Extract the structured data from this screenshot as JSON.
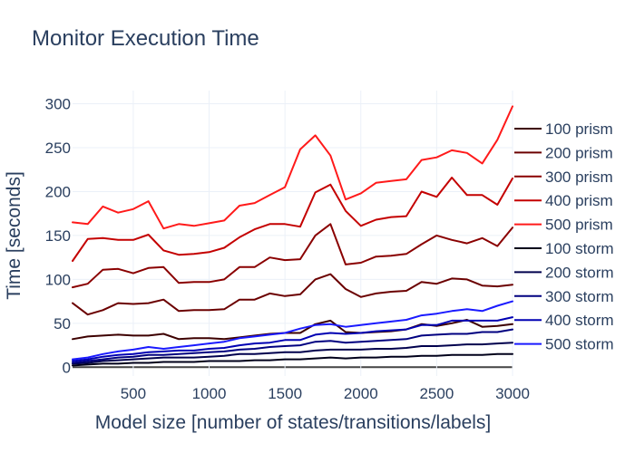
{
  "chart_data": {
    "type": "line",
    "title": "Monitor Execution Time",
    "xlabel": "Model size [number of states/transitions/labels]",
    "ylabel": "Time [seconds]",
    "xlim": [
      100,
      3000
    ],
    "ylim": [
      -10,
      315
    ],
    "xticks": [
      500,
      1000,
      1500,
      2000,
      2500,
      3000
    ],
    "yticks": [
      0,
      50,
      100,
      150,
      200,
      250,
      300
    ],
    "grid": true,
    "legend_position": "right",
    "x": [
      100,
      200,
      300,
      400,
      500,
      600,
      700,
      800,
      900,
      1000,
      1100,
      1200,
      1300,
      1400,
      1500,
      1600,
      1700,
      1800,
      1900,
      2000,
      2100,
      2200,
      2300,
      2400,
      2500,
      2600,
      2700,
      2800,
      2900,
      3000
    ],
    "series": [
      {
        "name": "100 prism",
        "color": "#3d0000",
        "values": [
          32,
          35,
          36,
          37,
          36,
          36,
          38,
          32,
          33,
          33,
          32,
          34,
          36,
          38,
          39,
          39,
          49,
          53,
          40,
          39,
          40,
          41,
          43,
          49,
          47,
          50,
          54,
          46,
          47,
          49
        ]
      },
      {
        "name": "200 prism",
        "color": "#6b0000",
        "values": [
          73,
          60,
          65,
          73,
          72,
          73,
          77,
          64,
          65,
          65,
          66,
          77,
          77,
          84,
          81,
          83,
          100,
          106,
          89,
          80,
          84,
          86,
          87,
          97,
          95,
          101,
          100,
          93,
          92,
          94
        ]
      },
      {
        "name": "300 prism",
        "color": "#8a0000",
        "values": [
          91,
          95,
          111,
          112,
          107,
          113,
          114,
          96,
          97,
          97,
          100,
          114,
          114,
          125,
          122,
          123,
          150,
          163,
          117,
          119,
          126,
          127,
          129,
          140,
          150,
          145,
          141,
          147,
          138,
          159
        ]
      },
      {
        "name": "400 prism",
        "color": "#c40000",
        "values": [
          121,
          146,
          147,
          145,
          145,
          151,
          133,
          128,
          129,
          131,
          136,
          148,
          157,
          163,
          163,
          160,
          199,
          208,
          178,
          161,
          168,
          171,
          172,
          200,
          194,
          216,
          196,
          196,
          185,
          215
        ]
      },
      {
        "name": "500 prism",
        "color": "#ff1a1a",
        "values": [
          165,
          163,
          183,
          176,
          180,
          189,
          158,
          163,
          161,
          164,
          167,
          184,
          187,
          196,
          205,
          248,
          264,
          241,
          191,
          198,
          210,
          212,
          214,
          236,
          239,
          247,
          244,
          232,
          259,
          297
        ]
      },
      {
        "name": "100 storm",
        "color": "#00001a",
        "values": [
          2,
          3,
          4,
          4,
          5,
          5,
          6,
          6,
          6,
          7,
          7,
          7,
          8,
          8,
          9,
          9,
          10,
          11,
          10,
          11,
          11,
          12,
          12,
          13,
          13,
          14,
          14,
          14,
          15,
          15
        ]
      },
      {
        "name": "200 storm",
        "color": "#00004d",
        "values": [
          4,
          5,
          7,
          8,
          9,
          10,
          11,
          11,
          11,
          12,
          13,
          15,
          15,
          16,
          17,
          17,
          19,
          20,
          20,
          20,
          21,
          21,
          22,
          24,
          24,
          25,
          26,
          26,
          27,
          28
        ]
      },
      {
        "name": "300 storm",
        "color": "#000080",
        "values": [
          5,
          7,
          9,
          11,
          12,
          14,
          14,
          15,
          16,
          17,
          18,
          20,
          21,
          23,
          24,
          25,
          29,
          30,
          28,
          29,
          30,
          31,
          32,
          36,
          37,
          38,
          38,
          40,
          40,
          43
        ]
      },
      {
        "name": "400 storm",
        "color": "#0000b3",
        "values": [
          7,
          9,
          12,
          14,
          15,
          17,
          18,
          19,
          19,
          21,
          22,
          25,
          27,
          28,
          31,
          31,
          37,
          39,
          38,
          39,
          41,
          42,
          43,
          48,
          48,
          53,
          53,
          53,
          53,
          57
        ]
      },
      {
        "name": "500 storm",
        "color": "#1a1aff",
        "values": [
          9,
          11,
          15,
          18,
          20,
          23,
          21,
          23,
          25,
          27,
          29,
          33,
          35,
          37,
          39,
          44,
          48,
          49,
          46,
          48,
          50,
          52,
          54,
          59,
          61,
          64,
          66,
          64,
          70,
          75
        ]
      }
    ]
  }
}
